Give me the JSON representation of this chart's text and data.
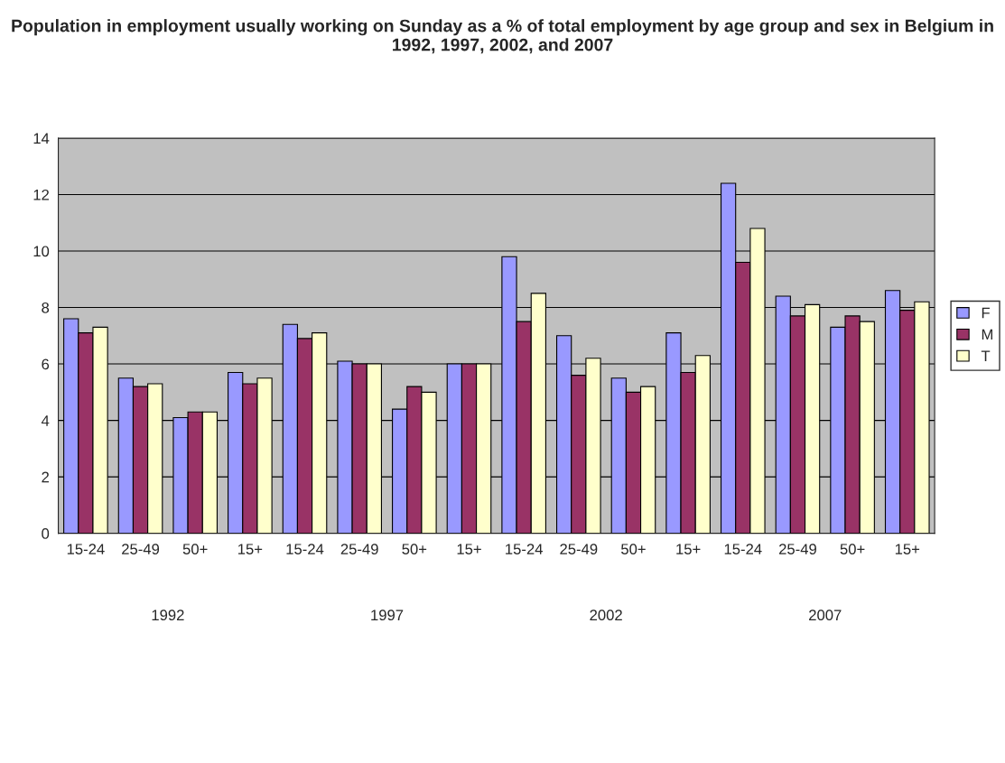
{
  "chart_data": {
    "type": "bar",
    "title": "Population in employment usually working on Sunday as a % of total employment by age group and sex in Belgium in 1992, 1997, 2002, and 2007",
    "categories": [
      "15-24",
      "25-49",
      "50+",
      "15+",
      "15-24",
      "25-49",
      "50+",
      "15+",
      "15-24",
      "25-49",
      "50+",
      "15+",
      "15-24",
      "25-49",
      "50+",
      "15+"
    ],
    "series": [
      {
        "name": "F",
        "color": "#9999ff",
        "values": [
          7.6,
          5.5,
          4.1,
          5.7,
          7.4,
          6.1,
          4.4,
          6.0,
          9.8,
          7.0,
          5.5,
          7.1,
          12.4,
          8.4,
          7.3,
          8.6
        ]
      },
      {
        "name": "M",
        "color": "#993366",
        "values": [
          7.1,
          5.2,
          4.3,
          5.3,
          6.9,
          6.0,
          5.2,
          6.0,
          7.5,
          5.6,
          5.0,
          5.7,
          9.6,
          7.7,
          7.7,
          7.9
        ]
      },
      {
        "name": "T",
        "color": "#ffffcc",
        "values": [
          7.3,
          5.3,
          4.3,
          5.5,
          7.1,
          6.0,
          5.0,
          6.0,
          8.5,
          6.2,
          5.2,
          6.3,
          10.8,
          8.1,
          7.5,
          8.2
        ]
      }
    ],
    "annotations": [
      "1992",
      "1997",
      "2002",
      "2007"
    ],
    "ylim": [
      0,
      14
    ],
    "yticks": [
      0,
      2,
      4,
      6,
      8,
      10,
      12,
      14
    ],
    "grid": "y",
    "legend": "right"
  }
}
